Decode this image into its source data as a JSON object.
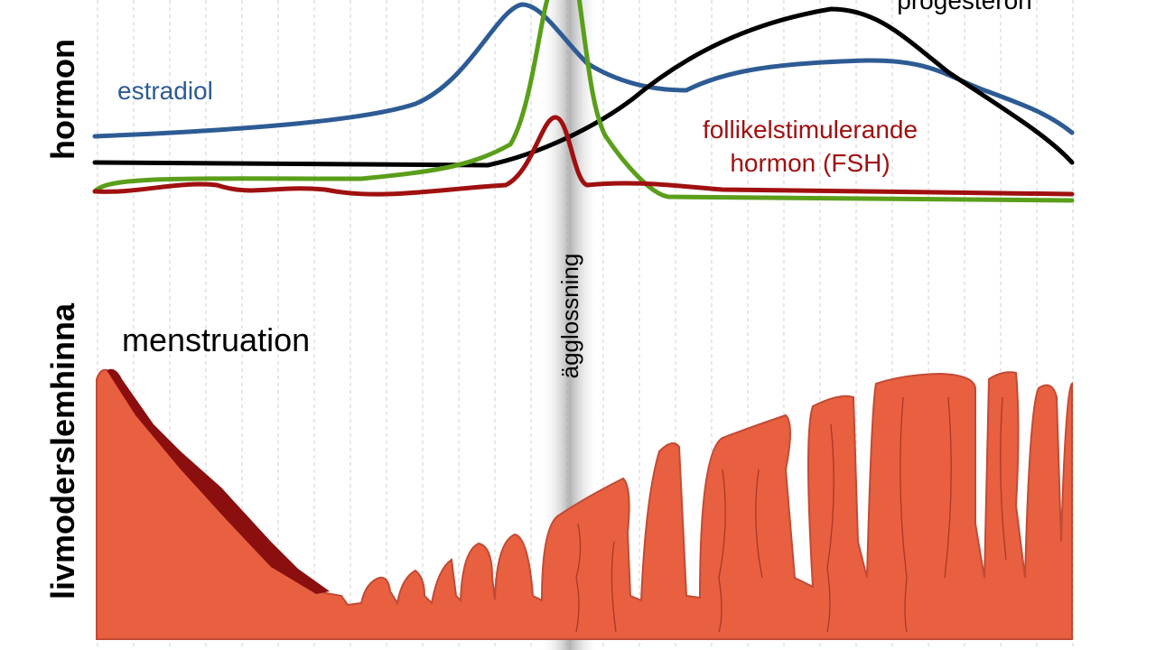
{
  "axis_labels": {
    "hormones": "hormon",
    "endometrium": "livmoderslemhinna"
  },
  "hormones": {
    "estradiol": "estradiol",
    "progesterone": "progesteron",
    "fsh_line1": "follikelstimulerande",
    "fsh_line2": "hormon (FSH)"
  },
  "phases": {
    "menstruation": "menstruation",
    "ovulation": "ägglossning"
  }
}
